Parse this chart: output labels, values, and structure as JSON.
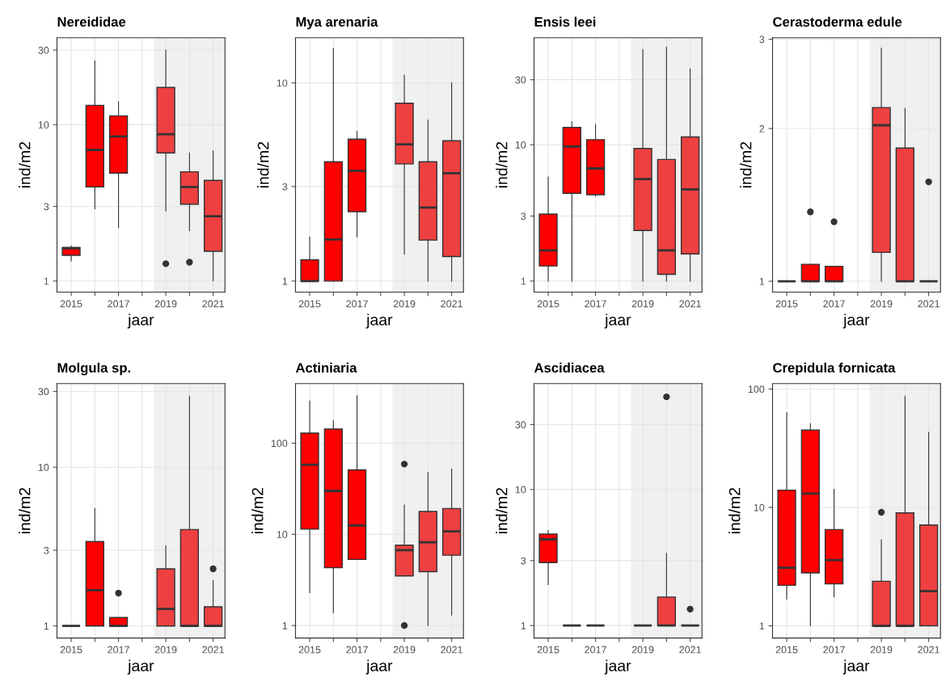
{
  "chart_data": [
    {
      "type": "box",
      "title": "Nereididae",
      "xlabel": "jaar",
      "ylabel": "ind/m2",
      "log": true,
      "grid": true,
      "categories": [
        "2015",
        null,
        "2017",
        null,
        "2019",
        null,
        "2021"
      ],
      "ylim": [
        0.85,
        36
      ],
      "yticks": [
        1,
        3,
        10,
        30
      ],
      "colors": [
        "#ff0000",
        "#ff0000",
        "#ff0000",
        null,
        "#ee4040",
        "#ee4040",
        "#ee4040"
      ],
      "bands": [
        {
          "axis": "x",
          "from": "2019",
          "to": "2021",
          "color": "#f0f0f0"
        }
      ],
      "boxes": [
        {
          "low": 1.34,
          "q1": 1.46,
          "median": 1.62,
          "q3": 1.64,
          "high": 1.68
        },
        {
          "low": 2.9,
          "q1": 4.0,
          "median": 6.9,
          "q3": 13.3,
          "high": 25.6
        },
        {
          "low": 2.2,
          "q1": 4.9,
          "median": 8.4,
          "q3": 11.4,
          "high": 14
        },
        null,
        {
          "low": 2.8,
          "q1": 6.6,
          "median": 8.7,
          "q3": 17.3,
          "high": 30,
          "outliers": [
            1.29
          ]
        },
        {
          "low": 2.1,
          "q1": 3.1,
          "median": 4.0,
          "q3": 5.0,
          "high": 6.6,
          "outliers": [
            1.32
          ]
        },
        {
          "low": 1,
          "q1": 1.55,
          "median": 2.6,
          "q3": 4.4,
          "high": 6.8
        }
      ]
    },
    {
      "type": "box",
      "title": "Mya arenaria",
      "xlabel": "jaar",
      "ylabel": "ind/m2",
      "log": true,
      "grid": true,
      "categories": [
        "2015",
        null,
        "2017",
        null,
        "2019",
        null,
        "2021"
      ],
      "ylim": [
        0.88,
        16.9
      ],
      "yticks": [
        1,
        3,
        10
      ],
      "colors": [
        "#ff0000",
        "#ff0000",
        "#ff0000",
        null,
        "#ee4040",
        "#ee4040",
        "#ee4040"
      ],
      "bands": [
        {
          "axis": "x",
          "from": "2019",
          "to": "2021",
          "color": "#f0f0f0"
        }
      ],
      "boxes": [
        {
          "low": 1,
          "q1": 1,
          "median": 1,
          "q3": 1.28,
          "high": 1.67
        },
        {
          "low": 1,
          "q1": 1,
          "median": 1.62,
          "q3": 4.0,
          "high": 14.9
        },
        {
          "low": 1.67,
          "q1": 2.24,
          "median": 3.6,
          "q3": 5.2,
          "high": 5.7
        },
        null,
        {
          "low": 1.37,
          "q1": 3.9,
          "median": 4.9,
          "q3": 7.9,
          "high": 10.9
        },
        {
          "low": 1,
          "q1": 1.61,
          "median": 2.35,
          "q3": 4.0,
          "high": 6.5
        },
        {
          "low": 1,
          "q1": 1.33,
          "median": 3.5,
          "q3": 5.1,
          "high": 10
        }
      ]
    },
    {
      "type": "box",
      "title": "Ensis leei",
      "xlabel": "jaar",
      "ylabel": "ind/m2",
      "log": true,
      "grid": true,
      "categories": [
        "2015",
        null,
        "2017",
        null,
        "2019",
        null,
        "2021"
      ],
      "ylim": [
        0.83,
        61
      ],
      "yticks": [
        1,
        3,
        10,
        30
      ],
      "colors": [
        "#ff0000",
        "#ff0000",
        "#ff0000",
        null,
        "#ee4040",
        "#ee4040",
        "#ee4040"
      ],
      "bands": [
        {
          "axis": "x",
          "from": "2019",
          "to": "2021",
          "color": "#f0f0f0"
        }
      ],
      "boxes": [
        {
          "low": 1,
          "q1": 1.29,
          "median": 1.68,
          "q3": 3.1,
          "high": 5.8
        },
        {
          "low": 1,
          "q1": 4.4,
          "median": 9.7,
          "q3": 13.4,
          "high": 14.8
        },
        {
          "low": 4.2,
          "q1": 4.3,
          "median": 6.7,
          "q3": 10.9,
          "high": 14.1
        },
        null,
        {
          "low": 1,
          "q1": 2.35,
          "median": 5.6,
          "q3": 9.4,
          "high": 50
        },
        {
          "low": 1,
          "q1": 1.12,
          "median": 1.68,
          "q3": 7.8,
          "high": 52
        },
        {
          "low": 1,
          "q1": 1.58,
          "median": 4.7,
          "q3": 11.4,
          "high": 36
        }
      ]
    },
    {
      "type": "box",
      "title": "Cerastoderma edule",
      "xlabel": "jaar",
      "ylabel": "ind/m2",
      "log": true,
      "grid": true,
      "categories": [
        "2015",
        null,
        "2017",
        null,
        "2019",
        null,
        "2021"
      ],
      "ylim": [
        0.952,
        3.02
      ],
      "yticks": [
        1,
        2,
        3
      ],
      "colors": [
        "#333333",
        "#ff0000",
        "#ff0000",
        null,
        "#ee4040",
        "#ee4040",
        "#333333"
      ],
      "bands": [
        {
          "axis": "x",
          "from": "2019",
          "to": "2021",
          "color": "#f0f0f0"
        }
      ],
      "boxes": [
        {
          "low": 1,
          "q1": 1,
          "median": 1,
          "q3": 1,
          "high": 1
        },
        {
          "low": 1,
          "q1": 1,
          "median": 1,
          "q3": 1.08,
          "high": 1.08,
          "outliers": [
            1.37
          ]
        },
        {
          "low": 1,
          "q1": 1,
          "median": 1,
          "q3": 1.07,
          "high": 1.07,
          "outliers": [
            1.31
          ]
        },
        null,
        {
          "low": 1,
          "q1": 1.14,
          "median": 2.03,
          "q3": 2.2,
          "high": 2.88
        },
        {
          "low": 1,
          "q1": 1,
          "median": 1,
          "q3": 1.83,
          "high": 2.19
        },
        {
          "low": 1,
          "q1": 1,
          "median": 1,
          "q3": 1,
          "high": 1,
          "outliers": [
            1.57
          ]
        }
      ]
    },
    {
      "type": "box",
      "title": "Molgula sp.",
      "xlabel": "jaar",
      "ylabel": "ind/m2",
      "log": true,
      "grid": true,
      "categories": [
        "2015",
        null,
        "2017",
        null,
        "2019",
        null,
        "2021"
      ],
      "ylim": [
        0.84,
        33.6
      ],
      "yticks": [
        1,
        3,
        10,
        30
      ],
      "colors": [
        "#333333",
        "#ff0000",
        "#ff0000",
        null,
        "#ee4040",
        "#ee4040",
        "#ee4040"
      ],
      "bands": [
        {
          "axis": "x",
          "from": "2019",
          "to": "2021",
          "color": "#f0f0f0"
        }
      ],
      "boxes": [
        {
          "low": 1,
          "q1": 1,
          "median": 1,
          "q3": 1,
          "high": 1
        },
        {
          "low": 1,
          "q1": 1,
          "median": 1.68,
          "q3": 3.4,
          "high": 5.5
        },
        {
          "low": 1,
          "q1": 1,
          "median": 1,
          "q3": 1.13,
          "high": 1.13,
          "outliers": [
            1.61
          ]
        },
        null,
        {
          "low": 1,
          "q1": 1,
          "median": 1.28,
          "q3": 2.29,
          "high": 3.2
        },
        {
          "low": 1,
          "q1": 1,
          "median": 1,
          "q3": 4.05,
          "high": 28
        },
        {
          "low": 1,
          "q1": 1,
          "median": 1,
          "q3": 1.32,
          "high": 1.93,
          "outliers": [
            2.29
          ]
        }
      ]
    },
    {
      "type": "box",
      "title": "Actiniaria",
      "xlabel": "jaar",
      "ylabel": "ind/m2",
      "log": true,
      "grid": true,
      "categories": [
        "2015",
        null,
        "2017",
        null,
        "2019",
        null,
        "2021"
      ],
      "ylim": [
        0.73,
        450
      ],
      "yticks": [
        1,
        10,
        100
      ],
      "colors": [
        "#ff0000",
        "#ff0000",
        "#ff0000",
        null,
        "#ee4040",
        "#ee4040",
        "#ee4040"
      ],
      "bands": [
        {
          "axis": "x",
          "from": "2019",
          "to": "2021",
          "color": "#f0f0f0"
        }
      ],
      "boxes": [
        {
          "low": 2.3,
          "q1": 11.4,
          "median": 58,
          "q3": 129,
          "high": 290
        },
        {
          "low": 1.38,
          "q1": 4.3,
          "median": 30,
          "q3": 143,
          "high": 178
        },
        {
          "low": 5.3,
          "q1": 5.3,
          "median": 12.5,
          "q3": 51,
          "high": 331
        },
        null,
        {
          "low": 3.5,
          "q1": 3.5,
          "median": 6.7,
          "q3": 7.6,
          "high": 21,
          "outliers": [
            59,
            1
          ]
        },
        {
          "low": 1,
          "q1": 3.9,
          "median": 8.2,
          "q3": 17.8,
          "high": 48
        },
        {
          "low": 1.3,
          "q1": 5.9,
          "median": 10.8,
          "q3": 19.2,
          "high": 52
        }
      ]
    },
    {
      "type": "box",
      "title": "Ascidiacea",
      "xlabel": "jaar",
      "ylabel": "ind/m2",
      "log": true,
      "grid": true,
      "categories": [
        "2015",
        null,
        "2017",
        null,
        "2019",
        null,
        "2021"
      ],
      "ylim": [
        0.81,
        60
      ],
      "yticks": [
        1,
        3,
        10,
        30
      ],
      "colors": [
        "#ff0000",
        "#333333",
        "#333333",
        null,
        "#333333",
        "#ee4040",
        "#333333"
      ],
      "bands": [
        {
          "axis": "x",
          "from": "2019",
          "to": "2021",
          "color": "#f0f0f0"
        }
      ],
      "boxes": [
        {
          "low": 2.0,
          "q1": 2.9,
          "median": 4.3,
          "q3": 4.7,
          "high": 5.0
        },
        {
          "low": 1,
          "q1": 1,
          "median": 1,
          "q3": 1,
          "high": 1
        },
        {
          "low": 1,
          "q1": 1,
          "median": 1,
          "q3": 1,
          "high": 1
        },
        null,
        {
          "low": 1,
          "q1": 1,
          "median": 1,
          "q3": 1,
          "high": 1
        },
        {
          "low": 1,
          "q1": 1,
          "median": 1,
          "q3": 1.62,
          "high": 3.4,
          "outliers": [
            48
          ]
        },
        {
          "low": 1,
          "q1": 1,
          "median": 1,
          "q3": 1,
          "high": 1,
          "outliers": [
            1.32
          ]
        }
      ]
    },
    {
      "type": "box",
      "title": "Crepidula fornicata",
      "xlabel": "jaar",
      "ylabel": "ind/m2",
      "log": true,
      "grid": true,
      "categories": [
        "2015",
        null,
        "2017",
        null,
        "2019",
        null,
        "2021"
      ],
      "ylim": [
        0.79,
        111
      ],
      "yticks": [
        1,
        10,
        100
      ],
      "colors": [
        "#ff0000",
        "#ff0000",
        "#ff0000",
        null,
        "#ee4040",
        "#ee4040",
        "#ee4040"
      ],
      "bands": [
        {
          "axis": "x",
          "from": "2019",
          "to": "2021",
          "color": "#f0f0f0"
        }
      ],
      "boxes": [
        {
          "low": 1.68,
          "q1": 2.2,
          "median": 3.1,
          "q3": 14,
          "high": 63
        },
        {
          "low": 1,
          "q1": 2.8,
          "median": 13.1,
          "q3": 45,
          "high": 51
        },
        {
          "low": 1.76,
          "q1": 2.26,
          "median": 3.6,
          "q3": 6.5,
          "high": 14.2
        },
        null,
        {
          "low": 1,
          "q1": 1,
          "median": 1,
          "q3": 2.38,
          "high": 5.3,
          "outliers": [
            9.1
          ]
        },
        {
          "low": 1,
          "q1": 1,
          "median": 1,
          "q3": 9.0,
          "high": 87
        },
        {
          "low": 1,
          "q1": 1,
          "median": 1.96,
          "q3": 7.1,
          "high": 43
        }
      ]
    }
  ]
}
